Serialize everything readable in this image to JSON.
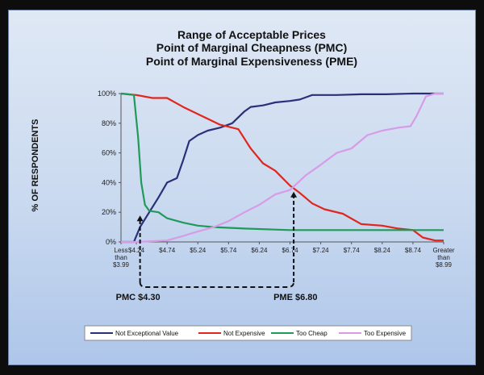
{
  "chart_data": {
    "type": "line",
    "title_lines": [
      "Range of Acceptable Prices",
      "Point of Marginal Cheapness (PMC)",
      "Point of Marginal Expensiveness (PME)"
    ],
    "ylabel": "% OF RESPONDENTS",
    "xlabel": "",
    "ylim": [
      0,
      100
    ],
    "yticks": [
      "0%",
      "20%",
      "40%",
      "60%",
      "80%",
      "100%"
    ],
    "x_ticks": [
      {
        "x": 3.99,
        "lines": [
          "Less",
          "than",
          "$3.99"
        ]
      },
      {
        "x": 4.24,
        "lines": [
          "$4.24"
        ]
      },
      {
        "x": 4.74,
        "lines": [
          "$4.74"
        ]
      },
      {
        "x": 5.24,
        "lines": [
          "$5.24"
        ]
      },
      {
        "x": 5.74,
        "lines": [
          "$5.74"
        ]
      },
      {
        "x": 6.24,
        "lines": [
          "$6.24"
        ]
      },
      {
        "x": 6.74,
        "lines": [
          "$6.74"
        ]
      },
      {
        "x": 7.24,
        "lines": [
          "$7.24"
        ]
      },
      {
        "x": 7.74,
        "lines": [
          "$7.74"
        ]
      },
      {
        "x": 8.24,
        "lines": [
          "$8.24"
        ]
      },
      {
        "x": 8.74,
        "lines": [
          "$8.74"
        ]
      },
      {
        "x": 9.24,
        "lines": [
          "Greater",
          "than",
          "$8.99"
        ]
      }
    ],
    "xlim": [
      3.99,
      9.24
    ],
    "series": [
      {
        "name": "Not Exceptional Value",
        "color": "#2b2f7a",
        "points": [
          [
            3.99,
            0
          ],
          [
            4.2,
            0
          ],
          [
            4.3,
            10
          ],
          [
            4.45,
            20
          ],
          [
            4.6,
            30
          ],
          [
            4.74,
            40
          ],
          [
            4.9,
            43
          ],
          [
            5.0,
            55
          ],
          [
            5.1,
            68
          ],
          [
            5.24,
            72
          ],
          [
            5.4,
            75
          ],
          [
            5.6,
            77
          ],
          [
            5.8,
            80
          ],
          [
            6.0,
            88
          ],
          [
            6.1,
            91
          ],
          [
            6.3,
            92
          ],
          [
            6.5,
            94
          ],
          [
            6.74,
            95
          ],
          [
            6.9,
            96
          ],
          [
            7.1,
            99
          ],
          [
            7.5,
            99
          ],
          [
            7.9,
            99.5
          ],
          [
            8.3,
            99.5
          ],
          [
            8.74,
            100
          ],
          [
            9.24,
            100
          ]
        ]
      },
      {
        "name": "Not Expensive",
        "color": "#e0261d",
        "points": [
          [
            3.99,
            100
          ],
          [
            4.24,
            99
          ],
          [
            4.5,
            97
          ],
          [
            4.74,
            97
          ],
          [
            5.0,
            91
          ],
          [
            5.3,
            85
          ],
          [
            5.6,
            79
          ],
          [
            5.9,
            76
          ],
          [
            6.1,
            63
          ],
          [
            6.3,
            53
          ],
          [
            6.5,
            48
          ],
          [
            6.74,
            38
          ],
          [
            6.9,
            33
          ],
          [
            7.1,
            26
          ],
          [
            7.3,
            22
          ],
          [
            7.6,
            19
          ],
          [
            7.9,
            12
          ],
          [
            8.24,
            11
          ],
          [
            8.5,
            9
          ],
          [
            8.74,
            8
          ],
          [
            8.9,
            3
          ],
          [
            9.1,
            1
          ],
          [
            9.24,
            1
          ]
        ]
      },
      {
        "name": "Too Cheap",
        "color": "#1f9a5a",
        "points": [
          [
            3.99,
            100
          ],
          [
            4.2,
            99
          ],
          [
            4.27,
            70
          ],
          [
            4.32,
            40
          ],
          [
            4.38,
            25
          ],
          [
            4.45,
            21
          ],
          [
            4.6,
            20
          ],
          [
            4.74,
            16
          ],
          [
            5.0,
            13
          ],
          [
            5.24,
            11
          ],
          [
            5.5,
            10
          ],
          [
            6.0,
            9
          ],
          [
            6.74,
            8
          ],
          [
            7.5,
            8
          ],
          [
            8.5,
            8
          ],
          [
            9.24,
            8
          ]
        ]
      },
      {
        "name": "Too Expensive",
        "color": "#d79be8",
        "points": [
          [
            3.99,
            0
          ],
          [
            4.24,
            0
          ],
          [
            4.74,
            1
          ],
          [
            5.0,
            4
          ],
          [
            5.24,
            7
          ],
          [
            5.5,
            10
          ],
          [
            5.74,
            14
          ],
          [
            6.0,
            20
          ],
          [
            6.24,
            25
          ],
          [
            6.5,
            32
          ],
          [
            6.74,
            35
          ],
          [
            7.0,
            45
          ],
          [
            7.24,
            52
          ],
          [
            7.5,
            60
          ],
          [
            7.74,
            63
          ],
          [
            8.0,
            72
          ],
          [
            8.24,
            75
          ],
          [
            8.5,
            77
          ],
          [
            8.7,
            78
          ],
          [
            8.8,
            85
          ],
          [
            8.95,
            98
          ],
          [
            9.1,
            100
          ],
          [
            9.24,
            100
          ]
        ]
      }
    ],
    "annotations": [
      {
        "label": "PMC $4.30",
        "x": 4.3,
        "y": 20
      },
      {
        "label": "PME $6.80",
        "x": 6.8,
        "y": 36
      }
    ],
    "legend_position": "bottom",
    "grid": false
  }
}
